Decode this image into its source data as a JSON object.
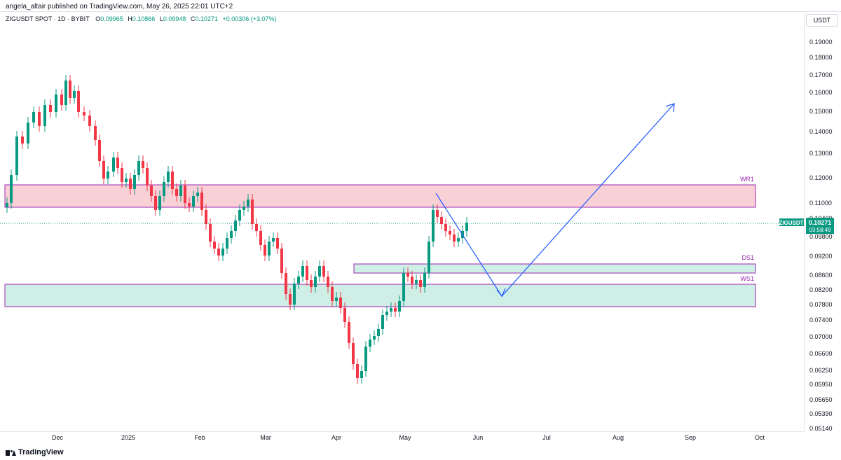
{
  "publisher_line": "angela_altair published on TradingView.com, May 26, 2025 22:01 UTC+2",
  "legend": {
    "symbol": "ZIGUSDT SPOT · 1D · BYBIT",
    "o_label": "O",
    "o_value": "0.09965",
    "h_label": "H",
    "h_value": "0.10866",
    "l_label": "L",
    "l_value": "0.09948",
    "c_label": "C",
    "c_value": "0.10271",
    "change": "+0.00306 (+3.07%)"
  },
  "price_axis": {
    "currency": "USDT",
    "ticks": [
      "0.19000",
      "0.18000",
      "0.17000",
      "0.16000",
      "0.15000",
      "0.14000",
      "0.13000",
      "0.12000",
      "0.11000",
      "0.10400",
      "0.09800",
      "0.09200",
      "0.08600",
      "0.08200",
      "0.07800",
      "0.07400",
      "0.07000",
      "0.06600",
      "0.06250",
      "0.05950",
      "0.05650",
      "0.05390",
      "0.05140"
    ]
  },
  "last_price": {
    "symbol": "ZIGUSDT",
    "value": "0.10271",
    "countdown": "03:58:49"
  },
  "time_axis": {
    "labels": [
      "Dec",
      "2025",
      "Feb",
      "Mar",
      "Apr",
      "May",
      "Jun",
      "Jul",
      "Aug",
      "Sep",
      "Oct"
    ]
  },
  "zones": [
    {
      "label": "WR1",
      "fill": "#f8d0d6",
      "border": "#9c27b0"
    },
    {
      "label": "DS1",
      "fill": "#cfeee6",
      "border": "#9c27b0"
    },
    {
      "label": "WS1",
      "fill": "#cfeee6",
      "border": "#9c27b0"
    }
  ],
  "colors": {
    "up": "#089981",
    "down": "#f23645",
    "projection": "#2962ff",
    "zone_label": "#9c27b0"
  },
  "footer": {
    "brand": "TradingView",
    "icon": "tradingview-logo-icon"
  }
}
